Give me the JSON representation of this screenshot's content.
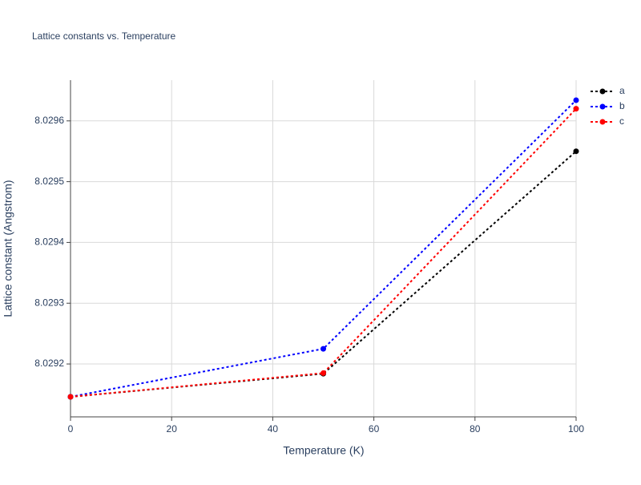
{
  "chart_data": {
    "type": "line",
    "title": "Lattice constants vs. Temperature",
    "x_label": "Temperature (K)",
    "y_label": "Lattice constant (Angstrom)",
    "x": [
      0,
      50,
      100
    ],
    "series": [
      {
        "name": "a",
        "color": "#000000",
        "values": [
          8.029146,
          8.029184,
          8.02955
        ]
      },
      {
        "name": "b",
        "color": "#0000ff",
        "values": [
          8.029146,
          8.029225,
          8.029634
        ]
      },
      {
        "name": "c",
        "color": "#ff0000",
        "values": [
          8.029146,
          8.029185,
          8.02962
        ]
      }
    ],
    "xlim": [
      0,
      100
    ],
    "xticks": [
      0,
      20,
      40,
      60,
      80,
      100
    ],
    "ylim": [
      8.029113,
      8.029667
    ],
    "yticks": [
      8.0292,
      8.0293,
      8.0294,
      8.0295,
      8.0296
    ],
    "grid": true
  }
}
